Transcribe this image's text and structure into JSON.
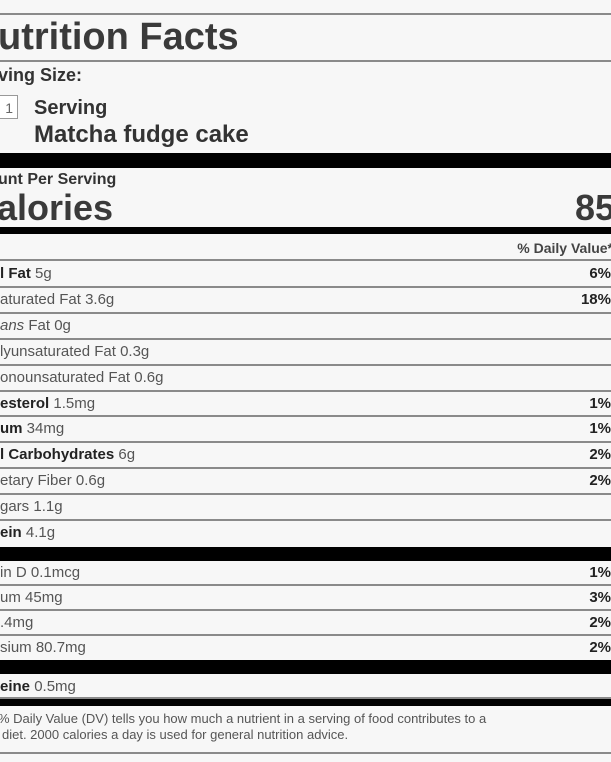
{
  "title": "utrition Facts",
  "serving_size_label": "ving Size:",
  "serving_quantity": "1",
  "serving_unit": "Serving",
  "food_name": "Matcha fudge cake",
  "amount_per_serving": "unt Per Serving",
  "calories_label": "alories",
  "calories_value": "85",
  "daily_value_header": "% Daily Value*",
  "nutrients": [
    {
      "name": "l Fat",
      "amount": "5g",
      "dv": "6%",
      "bold": true
    },
    {
      "name": "aturated Fat",
      "amount": "3.6g",
      "dv": "18%"
    },
    {
      "name": "ans",
      "amount": "Fat 0g",
      "dv": "",
      "italic": true
    },
    {
      "name": "lyunsaturated Fat",
      "amount": "0.3g",
      "dv": ""
    },
    {
      "name": "onounsaturated Fat",
      "amount": "0.6g",
      "dv": ""
    },
    {
      "name": "esterol",
      "amount": "1.5mg",
      "dv": "1%",
      "bold": true
    },
    {
      "name": "um",
      "amount": "34mg",
      "dv": "1%",
      "bold": true
    },
    {
      "name": "l Carbohydrates",
      "amount": "6g",
      "dv": "2%",
      "bold": true
    },
    {
      "name": "etary Fiber",
      "amount": "0.6g",
      "dv": "2%"
    },
    {
      "name": "gars",
      "amount": "1.1g",
      "dv": ""
    },
    {
      "name": "ein",
      "amount": "4.1g",
      "dv": "",
      "bold": true
    }
  ],
  "vitamins": [
    {
      "name": "in D",
      "amount": "0.1mcg",
      "dv": "1%"
    },
    {
      "name": "um",
      "amount": "45mg",
      "dv": "3%"
    },
    {
      "name": "",
      "amount": ".4mg",
      "dv": "2%"
    },
    {
      "name": "sium",
      "amount": "80.7mg",
      "dv": "2%"
    }
  ],
  "caffeine": {
    "name": "eine",
    "amount": "0.5mg"
  },
  "footnote_line1": "% Daily Value (DV) tells you how much a nutrient in a serving of food contributes to a",
  "footnote_line2": "diet. 2000 calories a day is used for general nutrition advice."
}
